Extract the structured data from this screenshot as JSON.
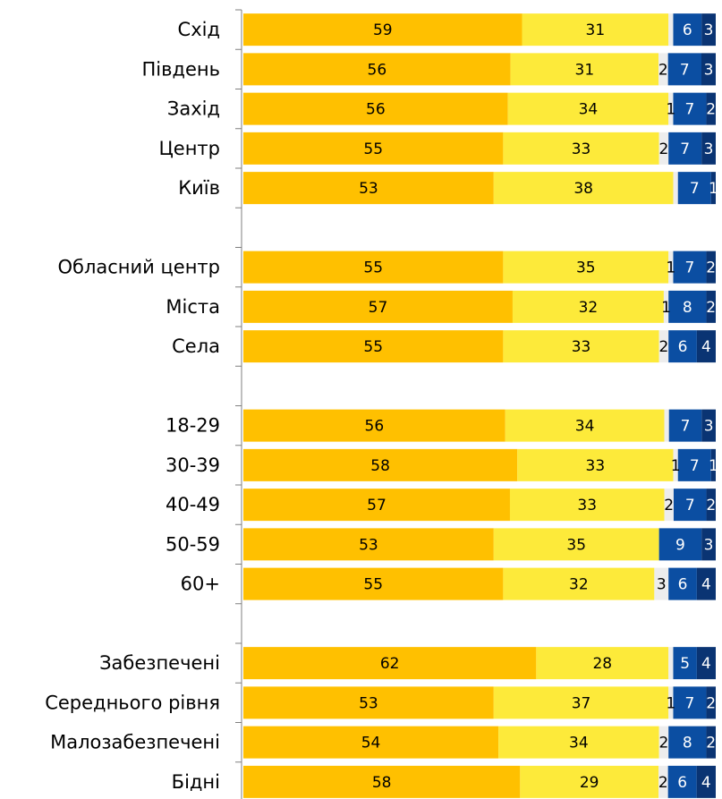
{
  "chart_data": {
    "type": "bar",
    "orientation": "horizontal",
    "stacked": true,
    "normalized_to": 100,
    "grid": false,
    "legend": "none",
    "categories": [
      "Схід",
      "Південь",
      "Захід",
      "Центр",
      "Київ",
      "Обласний центр",
      "Міста",
      "Села",
      "18-29",
      "30-39",
      "40-49",
      "50-59",
      "60+",
      "Забезпечені",
      "Середнього рівня",
      "Малозабезпечені",
      "Бідні"
    ],
    "group_breaks_after": [
      4,
      7,
      12
    ],
    "series": [
      {
        "color": "#FFC000",
        "label_color": "#000000",
        "values": [
          59,
          56,
          56,
          55,
          53,
          55,
          57,
          55,
          56,
          58,
          57,
          53,
          55,
          62,
          53,
          54,
          58
        ]
      },
      {
        "color": "#FDEA3A",
        "label_color": "#000000",
        "values": [
          31,
          31,
          34,
          33,
          38,
          35,
          32,
          33,
          34,
          33,
          33,
          35,
          32,
          28,
          37,
          34,
          29
        ]
      },
      {
        "color": "#EDEDED",
        "label_color": "#000000",
        "values": [
          1,
          2,
          1,
          2,
          1,
          1,
          1,
          2,
          1,
          1,
          2,
          0,
          3,
          1,
          1,
          2,
          2
        ],
        "shown_labels": [
          null,
          2,
          1,
          2,
          null,
          1,
          1,
          2,
          null,
          1,
          2,
          null,
          3,
          null,
          1,
          2,
          2
        ]
      },
      {
        "color": "#0B4EA2",
        "label_color": "#FFFFFF",
        "values": [
          6,
          7,
          7,
          7,
          7,
          7,
          8,
          6,
          7,
          7,
          7,
          9,
          6,
          5,
          7,
          8,
          6
        ]
      },
      {
        "color": "#0A3473",
        "label_color": "#FFFFFF",
        "values": [
          3,
          3,
          2,
          3,
          1,
          2,
          2,
          4,
          3,
          1,
          2,
          3,
          4,
          4,
          2,
          2,
          4
        ]
      }
    ]
  }
}
